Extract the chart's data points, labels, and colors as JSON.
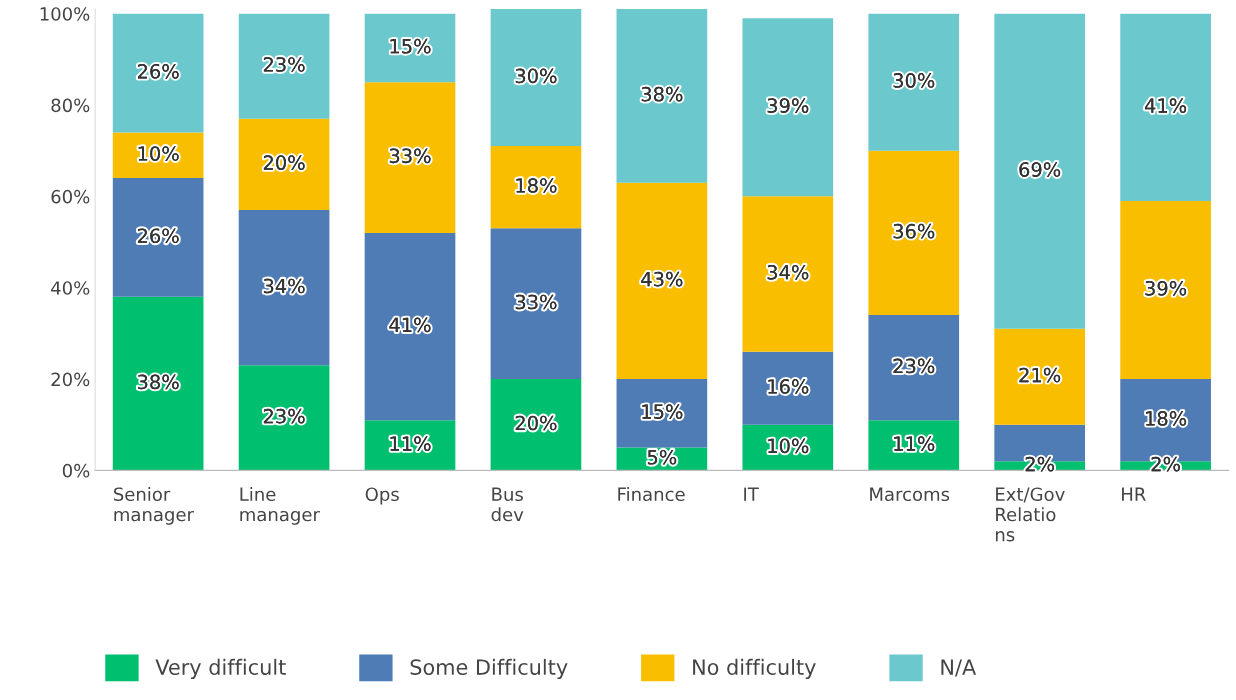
{
  "chart_data": {
    "type": "bar",
    "stacked": true,
    "categories": [
      "Senior\nmanager",
      "Line\nmanager",
      "Ops",
      "Bus\ndev",
      "Finance",
      "IT",
      "Marcoms",
      "Ext/Gov\nRelatio\nns",
      "HR"
    ],
    "series": [
      {
        "name": "Very difficult",
        "color": "#00bf6f",
        "values": [
          38,
          23,
          11,
          20,
          5,
          10,
          11,
          2,
          2
        ],
        "value_labels": [
          "38%",
          "23%",
          "11%",
          "20%",
          "5%",
          "10%",
          "11%",
          "2%",
          "2%"
        ]
      },
      {
        "name": "Some Difficulty",
        "color": "#507cb6",
        "values": [
          26,
          34,
          41,
          33,
          15,
          16,
          23,
          8,
          18
        ],
        "value_labels": [
          "26%",
          "34%",
          "41%",
          "33%",
          "15%",
          "16%",
          "23%",
          null,
          "18%"
        ]
      },
      {
        "name": "No difficulty",
        "color": "#f9be00",
        "values": [
          10,
          20,
          33,
          18,
          43,
          34,
          36,
          21,
          39
        ],
        "value_labels": [
          "10%",
          "20%",
          "33%",
          "18%",
          "43%",
          "34%",
          "36%",
          "21%",
          "39%"
        ]
      },
      {
        "name": "N/A",
        "color": "#6bc8cd",
        "values": [
          26,
          23,
          15,
          30,
          38,
          39,
          30,
          69,
          41
        ],
        "value_labels": [
          "26%",
          "23%",
          "15%",
          "30%",
          "38%",
          "39%",
          "30%",
          "69%",
          "41%"
        ]
      }
    ],
    "ylim": [
      0,
      101
    ],
    "yticks": [
      {
        "value": 0,
        "label": "0%"
      },
      {
        "value": 20,
        "label": "20%"
      },
      {
        "value": 40,
        "label": "40%"
      },
      {
        "value": 60,
        "label": "60%"
      },
      {
        "value": 80,
        "label": "80%"
      },
      {
        "value": 100,
        "label": "100%"
      }
    ],
    "grid": false,
    "legend": "bottom"
  }
}
